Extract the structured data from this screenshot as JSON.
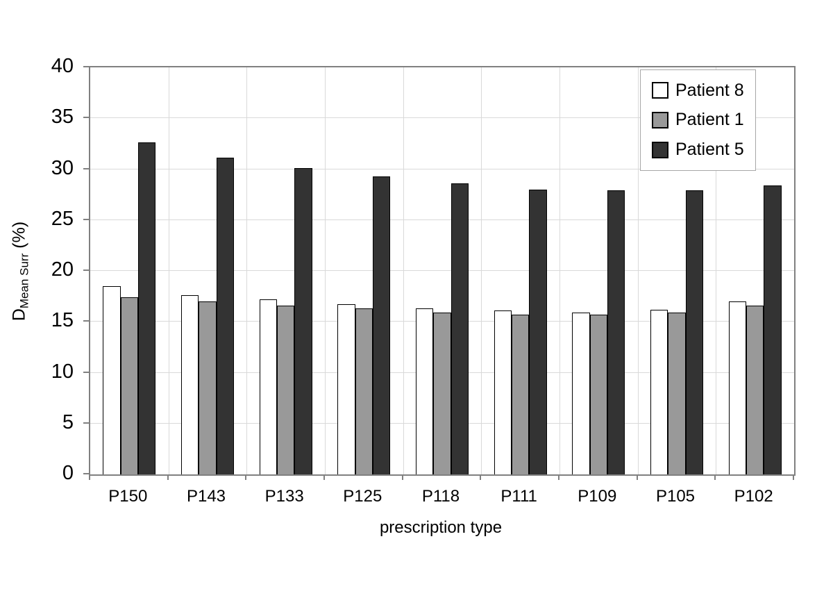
{
  "chart_data": {
    "type": "bar",
    "title": "",
    "xlabel": "prescription type",
    "ylabel": "D_{Mean Surr} (%)",
    "ylabel_parts": {
      "main": "D",
      "sub": "Mean Surr",
      "unit": "(%)"
    },
    "categories": [
      "P150",
      "P143",
      "P133",
      "P125",
      "P118",
      "P111",
      "P109",
      "P105",
      "P102"
    ],
    "series": [
      {
        "name": "Patient 8",
        "color": "#ffffff",
        "values": [
          18.5,
          17.6,
          17.2,
          16.7,
          16.3,
          16.1,
          15.9,
          16.2,
          17.0
        ]
      },
      {
        "name": "Patient 1",
        "color": "#999999",
        "values": [
          17.4,
          17.0,
          16.6,
          16.3,
          15.9,
          15.7,
          15.7,
          15.9,
          16.6
        ]
      },
      {
        "name": "Patient 5",
        "color": "#333333",
        "values": [
          32.6,
          31.1,
          30.1,
          29.3,
          28.6,
          28.0,
          27.9,
          27.9,
          28.4
        ]
      }
    ],
    "ylim": [
      0,
      40
    ],
    "ytick_step": 5,
    "grid": true,
    "legend_position": "top-right"
  },
  "colors": {
    "bar_border": "#000000",
    "grid": "#d9d9d9",
    "frame": "#808080",
    "background": "#ffffff"
  }
}
